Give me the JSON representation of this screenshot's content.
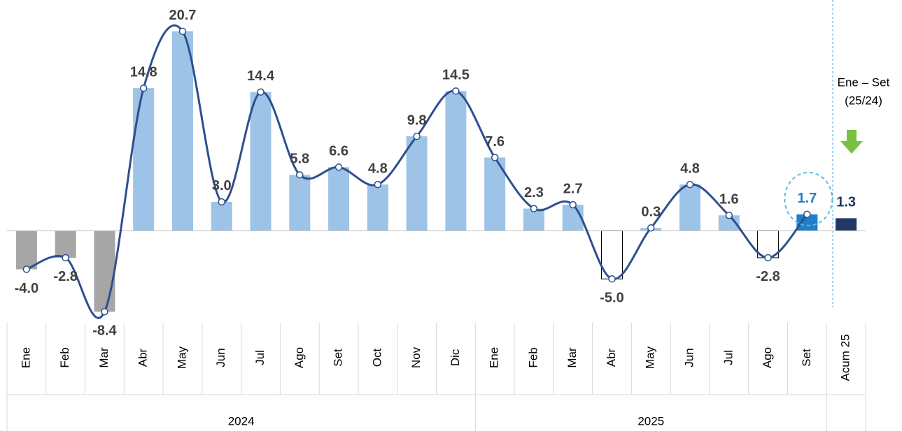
{
  "chart_data": {
    "type": "bar",
    "categories": [
      "Ene",
      "Feb",
      "Mar",
      "Abr",
      "May",
      "Jun",
      "Jul",
      "Ago",
      "Set",
      "Oct",
      "Nov",
      "Dic",
      "Ene",
      "Feb",
      "Mar",
      "Abr",
      "May",
      "Jun",
      "Jul",
      "Ago",
      "Set",
      "Acum 25"
    ],
    "years": [
      "2024",
      "2024",
      "2024",
      "2024",
      "2024",
      "2024",
      "2024",
      "2024",
      "2024",
      "2024",
      "2024",
      "2024",
      "2025",
      "2025",
      "2025",
      "2025",
      "2025",
      "2025",
      "2025",
      "2025",
      "2025",
      null
    ],
    "values": [
      -4.0,
      -2.8,
      -8.4,
      14.8,
      20.7,
      3.0,
      14.4,
      5.8,
      6.6,
      4.8,
      9.8,
      14.5,
      7.6,
      2.3,
      2.7,
      -5.0,
      0.3,
      4.8,
      1.6,
      -2.8,
      1.7,
      1.3
    ],
    "value_labels": [
      "-4.0",
      "-2.8",
      "-8.4",
      "14.8",
      "20.7",
      "3.0",
      "14.4",
      "5.8",
      "6.6",
      "4.8",
      "9.8",
      "14.5",
      "7.6",
      "2.3",
      "2.7",
      "-5.0",
      "0.3",
      "4.8",
      "1.6",
      "-2.8",
      "1.7",
      "1.3"
    ],
    "colors": [
      "#a6a6a6",
      "#a6a6a6",
      "#a6a6a6",
      "#9dc3e6",
      "#9dc3e6",
      "#9dc3e6",
      "#9dc3e6",
      "#9dc3e6",
      "#9dc3e6",
      "#9dc3e6",
      "#9dc3e6",
      "#9dc3e6",
      "#9dc3e6",
      "#9dc3e6",
      "#9dc3e6",
      "#ffffff",
      "#9dc3e6",
      "#9dc3e6",
      "#9dc3e6",
      "#ffffff",
      "#1f7fc8",
      "#1f3864"
    ],
    "label_colors": [
      "#404040",
      "#404040",
      "#404040",
      "#404040",
      "#404040",
      "#404040",
      "#404040",
      "#404040",
      "#404040",
      "#404040",
      "#404040",
      "#404040",
      "#404040",
      "#404040",
      "#404040",
      "#404040",
      "#404040",
      "#404040",
      "#404040",
      "#404040",
      "#1f7fc8",
      "#1f3864"
    ],
    "line_color": "#2e4f8f",
    "annotation": [
      "Ene – Set",
      "(25/24)"
    ],
    "ylim": [
      -9.4,
      22.5
    ]
  }
}
